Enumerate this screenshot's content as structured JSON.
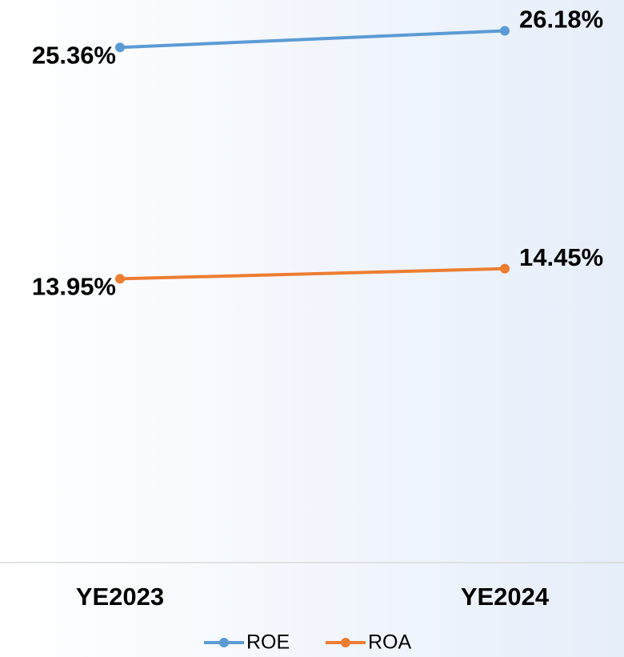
{
  "chart_data": {
    "type": "line",
    "categories": [
      "YE2023",
      "YE2024"
    ],
    "series": [
      {
        "name": "ROE",
        "color": "#5b9bd5",
        "values": [
          25.36,
          26.18
        ],
        "value_labels": [
          "25.36%",
          "26.18%"
        ]
      },
      {
        "name": "ROA",
        "color": "#ed7d31",
        "values": [
          13.95,
          14.45
        ],
        "value_labels": [
          "13.95%",
          "14.45%"
        ]
      }
    ],
    "ylim": [
      0,
      27.5
    ],
    "legend": "bottom"
  }
}
